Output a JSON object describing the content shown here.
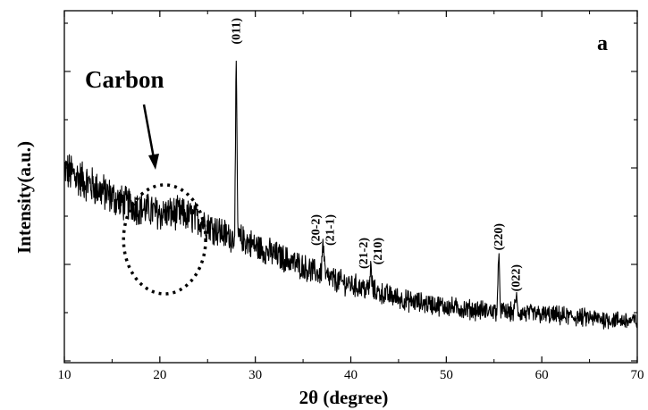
{
  "chart_data": {
    "type": "line",
    "panel_label": "a",
    "xlabel": "2θ (degree)",
    "ylabel": "Intensity(a.u.)",
    "xlim": [
      10,
      70
    ],
    "x_ticks": [
      10,
      20,
      30,
      40,
      50,
      60,
      70
    ],
    "y_tick_labels_shown": false,
    "series": [
      {
        "baseline_points": [
          [
            10,
            0.66
          ],
          [
            11,
            0.64
          ],
          [
            12,
            0.62
          ],
          [
            13,
            0.6
          ],
          [
            14,
            0.58
          ],
          [
            15,
            0.56
          ],
          [
            16,
            0.54
          ],
          [
            17,
            0.53
          ],
          [
            18,
            0.52
          ],
          [
            19,
            0.51
          ],
          [
            20,
            0.5
          ],
          [
            21,
            0.5
          ],
          [
            22,
            0.5
          ],
          [
            23,
            0.49
          ],
          [
            24,
            0.48
          ],
          [
            25,
            0.46
          ],
          [
            26,
            0.44
          ],
          [
            27,
            0.42
          ],
          [
            28,
            0.41
          ],
          [
            29,
            0.4
          ],
          [
            30,
            0.38
          ],
          [
            32,
            0.35
          ],
          [
            34,
            0.32
          ],
          [
            36,
            0.29
          ],
          [
            38,
            0.26
          ],
          [
            40,
            0.24
          ],
          [
            42,
            0.22
          ],
          [
            44,
            0.2
          ],
          [
            46,
            0.18
          ],
          [
            48,
            0.17
          ],
          [
            50,
            0.16
          ],
          [
            52,
            0.15
          ],
          [
            54,
            0.145
          ],
          [
            56,
            0.14
          ],
          [
            58,
            0.135
          ],
          [
            60,
            0.13
          ],
          [
            62,
            0.125
          ],
          [
            64,
            0.12
          ],
          [
            66,
            0.115
          ],
          [
            68,
            0.11
          ],
          [
            70,
            0.105
          ]
        ],
        "peaks": [
          {
            "x": 28.0,
            "intensity": 1.0,
            "width": 0.18
          },
          {
            "x": 37.1,
            "intensity": 0.39,
            "width": 0.22
          },
          {
            "x": 42.1,
            "intensity": 0.3,
            "width": 0.2
          },
          {
            "x": 55.5,
            "intensity": 0.32,
            "width": 0.22
          },
          {
            "x": 57.3,
            "intensity": 0.2,
            "width": 0.2
          }
        ]
      }
    ],
    "peak_annotations": [
      {
        "x": 28.0,
        "lines": [
          "(011)"
        ]
      },
      {
        "x": 37.1,
        "lines": [
          "(20-2)",
          "(21-1)"
        ]
      },
      {
        "x": 42.1,
        "lines": [
          "(21-2)",
          "(210)"
        ]
      },
      {
        "x": 55.5,
        "lines": [
          "(220)"
        ]
      },
      {
        "x": 57.3,
        "lines": [
          "(022)"
        ]
      }
    ],
    "region_annotation": {
      "label": "Carbon",
      "x_center": 20.5,
      "x_radius": 4.3
    }
  }
}
